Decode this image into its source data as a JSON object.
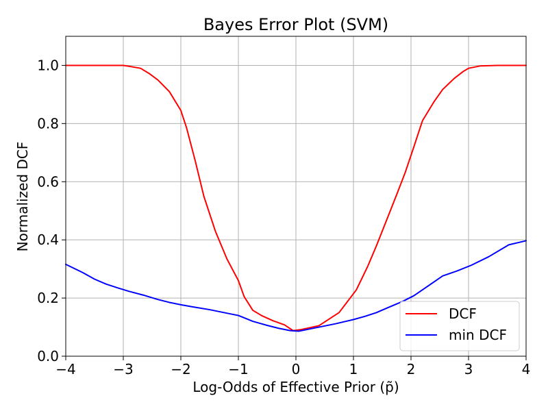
{
  "chart_data": {
    "type": "line",
    "title": "Bayes Error Plot (SVM)",
    "xlabel": "Log-Odds of Effective Prior (p̃)",
    "ylabel": "Normalized DCF",
    "xlim": [
      -4,
      4
    ],
    "ylim": [
      0,
      1.1
    ],
    "xticks": [
      -4,
      -3,
      -2,
      -1,
      0,
      1,
      2,
      3,
      4
    ],
    "xtick_labels": [
      "−4",
      "−3",
      "−2",
      "−1",
      "0",
      "1",
      "2",
      "3",
      "4"
    ],
    "yticks": [
      0,
      0.2,
      0.4,
      0.6,
      0.8,
      1.0
    ],
    "ytick_labels": [
      "0.0",
      "0.2",
      "0.4",
      "0.6",
      "0.8",
      "1.0"
    ],
    "grid": true,
    "legend_position": "lower-right",
    "series": [
      {
        "name": "DCF",
        "color": "#ff0000",
        "x": [
          -4,
          -3.5,
          -3,
          -2.9,
          -2.7,
          -2.55,
          -2.4,
          -2.2,
          -2.0,
          -1.9,
          -1.75,
          -1.6,
          -1.4,
          -1.2,
          -1.0,
          -0.9,
          -0.75,
          -0.6,
          -0.4,
          -0.2,
          -0.05,
          0.1,
          0.4,
          0.75,
          1.05,
          1.25,
          1.4,
          1.55,
          1.75,
          1.9,
          2.05,
          2.2,
          2.4,
          2.55,
          2.75,
          2.9,
          3.0,
          3.2,
          3.5,
          4.0
        ],
        "y": [
          1.0,
          1.0,
          1.0,
          0.997,
          0.99,
          0.972,
          0.95,
          0.91,
          0.845,
          0.785,
          0.672,
          0.55,
          0.43,
          0.335,
          0.26,
          0.205,
          0.158,
          0.14,
          0.122,
          0.108,
          0.088,
          0.092,
          0.105,
          0.15,
          0.228,
          0.31,
          0.38,
          0.455,
          0.555,
          0.632,
          0.72,
          0.81,
          0.875,
          0.917,
          0.955,
          0.978,
          0.99,
          0.998,
          1.0,
          1.0
        ]
      },
      {
        "name": "min DCF",
        "color": "#0000ff",
        "x": [
          -4,
          -3.7,
          -3.5,
          -3.3,
          -3.1,
          -2.9,
          -2.65,
          -2.4,
          -2.2,
          -2.0,
          -1.8,
          -1.5,
          -1.2,
          -1.0,
          -0.9,
          -0.75,
          -0.5,
          -0.3,
          -0.1,
          0.05,
          0.2,
          0.4,
          0.7,
          1.0,
          1.2,
          1.4,
          1.6,
          1.85,
          2.05,
          2.25,
          2.55,
          2.8,
          3.05,
          3.35,
          3.7,
          4.0
        ],
        "y": [
          0.316,
          0.287,
          0.265,
          0.248,
          0.235,
          0.223,
          0.21,
          0.195,
          0.185,
          0.177,
          0.17,
          0.16,
          0.148,
          0.14,
          0.132,
          0.12,
          0.106,
          0.096,
          0.088,
          0.086,
          0.092,
          0.1,
          0.112,
          0.126,
          0.137,
          0.15,
          0.167,
          0.188,
          0.208,
          0.235,
          0.276,
          0.293,
          0.313,
          0.342,
          0.383,
          0.397
        ]
      }
    ]
  }
}
